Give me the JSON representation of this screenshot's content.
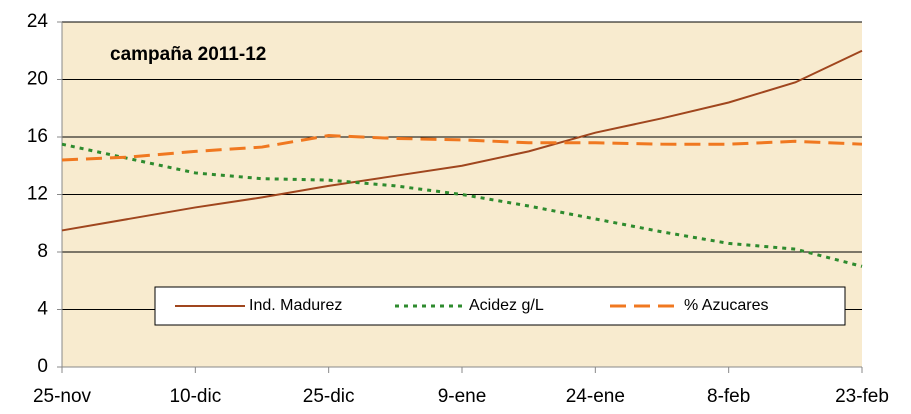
{
  "chart_data": {
    "type": "line",
    "annotation": "campaña 2011-12",
    "categories": [
      "25-nov",
      null,
      "10-dic",
      null,
      "25-dic",
      null,
      "9-ene",
      null,
      "24-ene",
      null,
      "8-feb",
      null,
      "23-feb"
    ],
    "series": [
      {
        "name": "Ind. Madurez",
        "color": "#a0461e",
        "style": "solid",
        "values": [
          9.5,
          10.3,
          11.1,
          11.8,
          12.6,
          13.3,
          14.0,
          15.0,
          16.3,
          17.3,
          18.4,
          19.8,
          22.0
        ]
      },
      {
        "name": "Acidez g/L",
        "color": "#2e8b2e",
        "style": "dotted",
        "values": [
          15.5,
          14.5,
          13.5,
          13.1,
          13.0,
          12.6,
          12.0,
          11.2,
          10.3,
          9.4,
          8.6,
          8.2,
          7.0
        ]
      },
      {
        "name": "% Azucares",
        "color": "#f07820",
        "style": "dashed",
        "values": [
          14.4,
          14.6,
          15.0,
          15.3,
          16.1,
          15.9,
          15.8,
          15.6,
          15.6,
          15.5,
          15.5,
          15.7,
          15.5
        ]
      }
    ],
    "ylim": [
      0,
      24
    ],
    "yticks": [
      0,
      4,
      8,
      12,
      16,
      20,
      24
    ],
    "grid": true,
    "legend": "lower center"
  }
}
